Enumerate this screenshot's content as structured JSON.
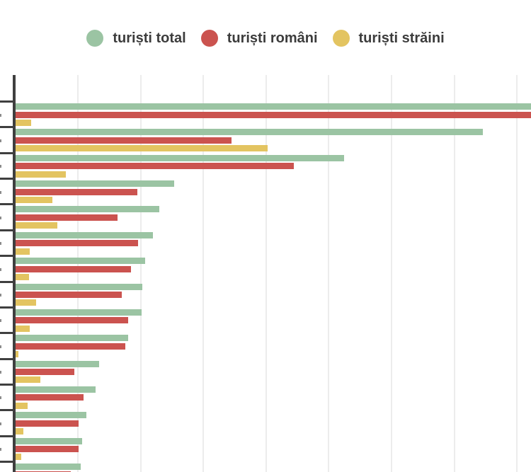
{
  "legend": {
    "items": [
      {
        "label": "turiști total",
        "color": "#9bc4a3"
      },
      {
        "label": "turiști români",
        "color": "#cb534f"
      },
      {
        "label": "turiști străini",
        "color": "#e3c461"
      }
    ]
  },
  "chart_data": {
    "type": "bar",
    "orientation": "horizontal",
    "title": "",
    "legend_position": "top-center",
    "grid": "vertical gridlines only, 8 visible, evenly spaced",
    "axes": {
      "x": {
        "labels_visible": false,
        "note": "x tick value labels are cropped out of the frame; values below are measured in gridline-interval units starting at the axis"
      },
      "y": {
        "labels_visible": false,
        "note": "category labels are cropped at the left edge of the frame; only tiny text fragments remain; 15 category rows visible, plus an empty band at the top; last row cut by the bottom edge"
      }
    },
    "categories": [
      "",
      "",
      "",
      "",
      "",
      "",
      "",
      "",
      "",
      "",
      "",
      "",
      "",
      "",
      ""
    ],
    "series": [
      {
        "name": "turiști total",
        "color": "#9bc4a3",
        "values": [
          9.3,
          7.45,
          5.24,
          2.53,
          2.29,
          2.19,
          2.07,
          2.02,
          2.01,
          1.8,
          1.33,
          1.28,
          1.13,
          1.06,
          1.04
        ]
      },
      {
        "name": "turiști români",
        "color": "#cb534f",
        "values": [
          9.3,
          3.44,
          4.44,
          1.94,
          1.63,
          1.95,
          1.84,
          1.69,
          1.8,
          1.75,
          0.94,
          1.08,
          1.01,
          1.01,
          0.88
        ]
      },
      {
        "name": "turiști străini",
        "color": "#e3c461",
        "values": [
          0.25,
          4.02,
          0.8,
          0.59,
          0.67,
          0.23,
          0.21,
          0.33,
          0.23,
          0.05,
          0.4,
          0.19,
          0.12,
          0.09,
          null
        ]
      }
    ],
    "xlim": [
      0,
      8.3
    ],
    "clipped": "row 1 'turiști total' and 'turiști români' bars extend past the right edge of the frame (true length unknown); row 15 'turiști români' bar only partially visible at the bottom edge, its 'turiști străini' bar not visible"
  }
}
